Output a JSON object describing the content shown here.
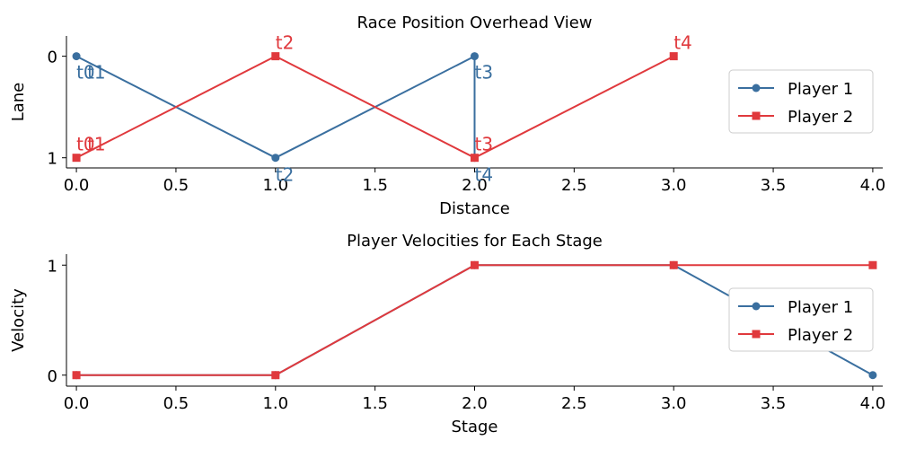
{
  "colors": {
    "player1": "#3a6f9f",
    "player2": "#e0393d"
  },
  "chart_data": [
    {
      "type": "line",
      "title": "Race Position Overhead View",
      "xlabel": "Distance",
      "ylabel": "Lane",
      "xlim": [
        -0.05,
        4.05
      ],
      "ylim": [
        1.1,
        -0.2
      ],
      "y_inverted": true,
      "xticks": [
        0.0,
        0.5,
        1.0,
        1.5,
        2.0,
        2.5,
        3.0,
        3.5,
        4.0
      ],
      "xtick_labels": [
        "0.0",
        "0.5",
        "1.0",
        "1.5",
        "2.0",
        "2.5",
        "3.0",
        "3.5",
        "4.0"
      ],
      "yticks": [
        0,
        1
      ],
      "ytick_labels": [
        "0",
        "1"
      ],
      "legend_position": "right",
      "series": [
        {
          "name": "Player 1",
          "marker": "circle",
          "color_key": "player1",
          "x": [
            0,
            1,
            2,
            2
          ],
          "y": [
            0,
            1,
            0,
            1
          ],
          "annotations": [
            {
              "text": "t0",
              "x": 0,
              "y": 0
            },
            {
              "text": "t1",
              "x": 0,
              "y": 0
            },
            {
              "text": "t2",
              "x": 1,
              "y": 1
            },
            {
              "text": "t3",
              "x": 2,
              "y": 0
            },
            {
              "text": "t4",
              "x": 2,
              "y": 1
            }
          ]
        },
        {
          "name": "Player 2",
          "marker": "square",
          "color_key": "player2",
          "x": [
            0,
            1,
            2,
            3
          ],
          "y": [
            1,
            0,
            1,
            0
          ],
          "annotations": [
            {
              "text": "t0",
              "x": 0,
              "y": 1
            },
            {
              "text": "t1",
              "x": 0,
              "y": 1
            },
            {
              "text": "t2",
              "x": 1,
              "y": 0
            },
            {
              "text": "t3",
              "x": 2,
              "y": 1
            },
            {
              "text": "t4",
              "x": 3,
              "y": 0
            }
          ]
        }
      ]
    },
    {
      "type": "line",
      "title": "Player Velocities for Each Stage",
      "xlabel": "Stage",
      "ylabel": "Velocity",
      "xlim": [
        -0.05,
        4.05
      ],
      "ylim": [
        -0.1,
        1.1
      ],
      "y_inverted": false,
      "xticks": [
        0.0,
        0.5,
        1.0,
        1.5,
        2.0,
        2.5,
        3.0,
        3.5,
        4.0
      ],
      "xtick_labels": [
        "0.0",
        "0.5",
        "1.0",
        "1.5",
        "2.0",
        "2.5",
        "3.0",
        "3.5",
        "4.0"
      ],
      "yticks": [
        0,
        1
      ],
      "ytick_labels": [
        "0",
        "1"
      ],
      "legend_position": "right",
      "series": [
        {
          "name": "Player 1",
          "marker": "circle",
          "color_key": "player1",
          "x": [
            0,
            1,
            2,
            3,
            4
          ],
          "y": [
            0,
            0,
            1,
            1,
            0
          ],
          "annotations": []
        },
        {
          "name": "Player 2",
          "marker": "square",
          "color_key": "player2",
          "x": [
            0,
            1,
            2,
            3,
            4
          ],
          "y": [
            0,
            0,
            1,
            1,
            1
          ],
          "annotations": []
        }
      ]
    }
  ]
}
